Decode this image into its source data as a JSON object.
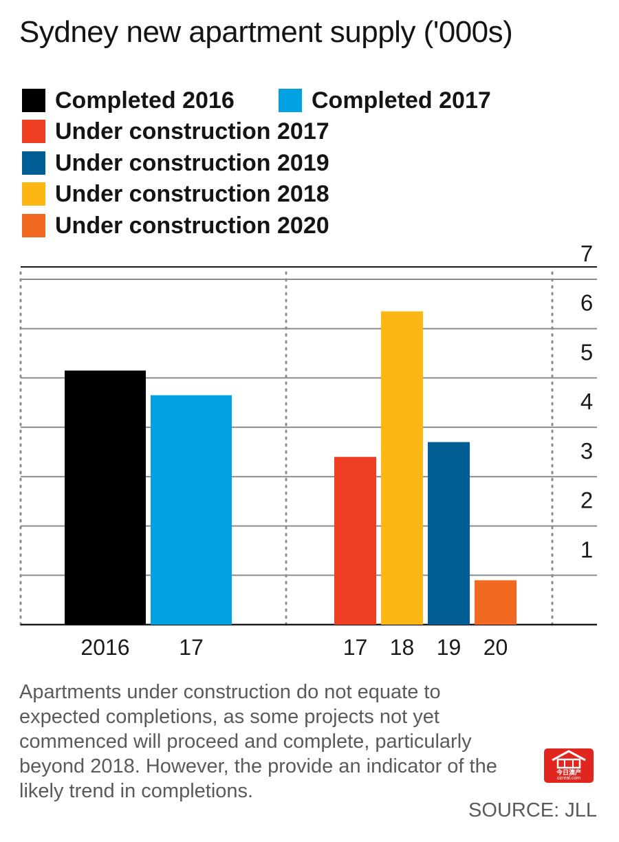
{
  "chart_data": {
    "type": "bar",
    "title": "Sydney new apartment supply ('000s)",
    "xlabel": "",
    "ylabel": "",
    "ylim": [
      0,
      7
    ],
    "yticks": [
      1,
      2,
      3,
      4,
      5,
      6,
      7
    ],
    "y_axis_side": "right",
    "grid": true,
    "legend": "top",
    "groups": [
      {
        "bars": [
          {
            "label": "2016",
            "series": "Completed 2016",
            "value": 5.15
          },
          {
            "label": "17",
            "series": "Completed 2017",
            "value": 4.65
          }
        ]
      },
      {
        "bars": [
          {
            "label": "17",
            "series": "Under construction 2017",
            "value": 3.4
          },
          {
            "label": "18",
            "series": "Under construction 2018",
            "value": 6.35
          },
          {
            "label": "19",
            "series": "Under construction 2019",
            "value": 3.7
          },
          {
            "label": "20",
            "series": "Under construction 2020",
            "value": 0.9
          }
        ]
      }
    ],
    "series": [
      {
        "name": "Completed 2016",
        "color": "#000000"
      },
      {
        "name": "Completed 2017",
        "color": "#00a2e1"
      },
      {
        "name": "Under construction 2017",
        "color": "#ee3e24"
      },
      {
        "name": "Under construction 2019",
        "color": "#005e95"
      },
      {
        "name": "Under construction 2018",
        "color": "#fdb714"
      },
      {
        "name": "Under construction 2020",
        "color": "#f26a22"
      }
    ]
  },
  "note": "Apartments under construction do not equate to expected completions, as some projects not yet commenced will proceed and complete, particularly beyond 2018. However, the provide an indicator of the likely trend in completions.",
  "source": "SOURCE: JLL",
  "logo": {
    "text": "今日澳产",
    "sub": "ozreal.com"
  }
}
